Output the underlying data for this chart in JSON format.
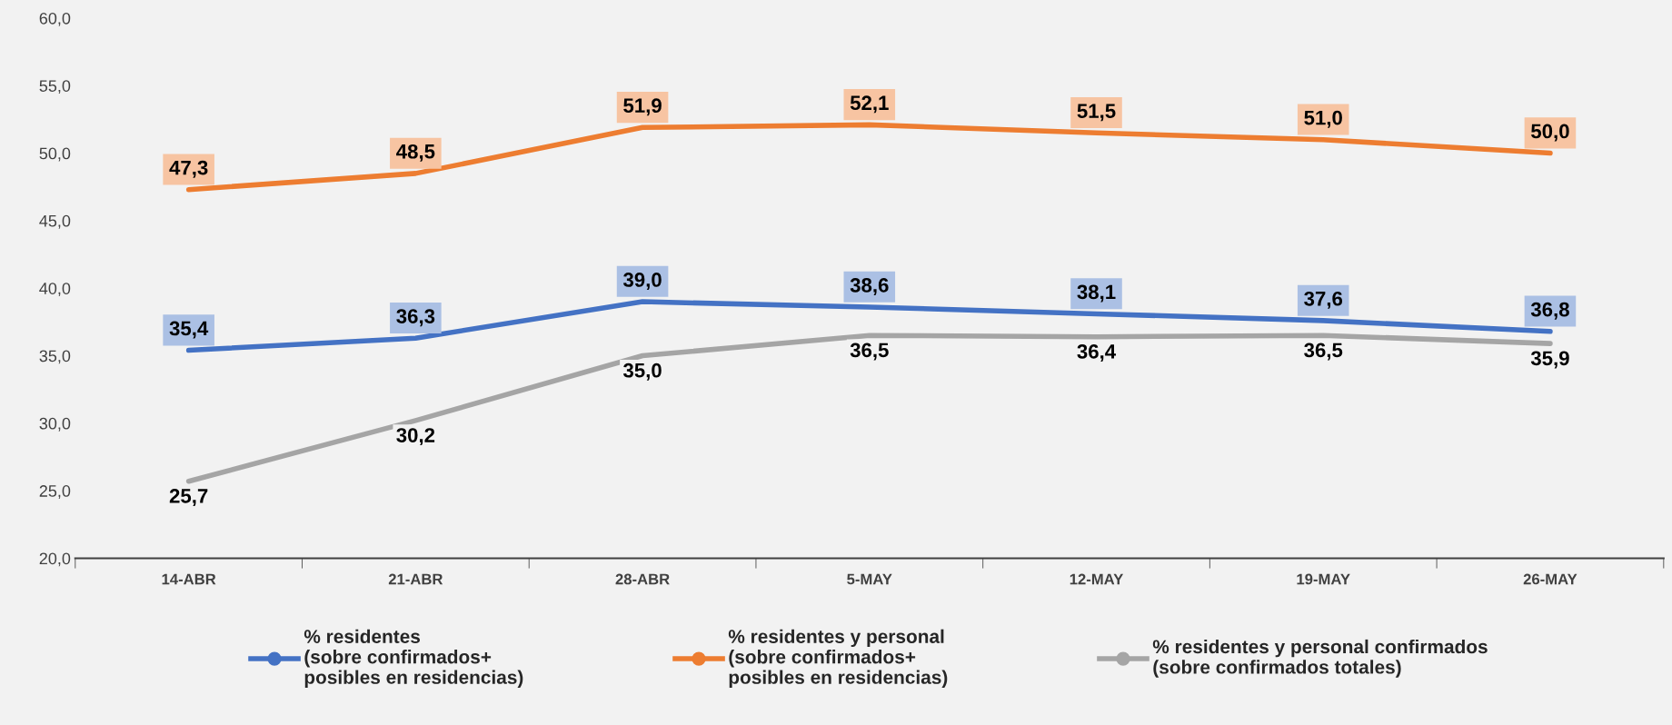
{
  "chart_data": {
    "type": "line",
    "categories": [
      "14-ABR",
      "21-ABR",
      "28-ABR",
      "5-MAY",
      "12-MAY",
      "19-MAY",
      "26-MAY"
    ],
    "series": [
      {
        "name": "% residentes\n(sobre confirmados+\nposibles en residencias)",
        "color": "#4472c4",
        "values": [
          35.4,
          36.3,
          39.0,
          38.6,
          38.1,
          37.6,
          36.8
        ],
        "value_labels": [
          "35,4",
          "36,3",
          "39,0",
          "38,6",
          "38,1",
          "37,6",
          "36,8"
        ]
      },
      {
        "name": "% residentes y personal\n(sobre confirmados+\nposibles en residencias)",
        "color": "#ed7d31",
        "values": [
          47.3,
          48.5,
          51.9,
          52.1,
          51.5,
          51.0,
          50.0
        ],
        "value_labels": [
          "47,3",
          "48,5",
          "51,9",
          "52,1",
          "51,5",
          "51,0",
          "50,0"
        ]
      },
      {
        "name": "% residentes y personal confirmados\n(sobre confirmados totales)",
        "color": "#a5a5a5",
        "values": [
          25.7,
          30.2,
          35.0,
          36.5,
          36.4,
          36.5,
          35.9
        ],
        "value_labels": [
          "25,7",
          "30,2",
          "35,0",
          "36,5",
          "36,4",
          "36,5",
          "35,9"
        ]
      }
    ],
    "ylim": [
      20,
      60
    ],
    "yticks": [
      {
        "value": 20,
        "label": "20,0"
      },
      {
        "value": 25,
        "label": "25,0"
      },
      {
        "value": 30,
        "label": "30,0"
      },
      {
        "value": 35,
        "label": "35,0"
      },
      {
        "value": 40,
        "label": "40,0"
      },
      {
        "value": 45,
        "label": "45,0"
      },
      {
        "value": 50,
        "label": "50,0"
      },
      {
        "value": 55,
        "label": "55,0"
      },
      {
        "value": 60,
        "label": "60,0"
      }
    ],
    "grid": false,
    "legend": "bottom"
  }
}
